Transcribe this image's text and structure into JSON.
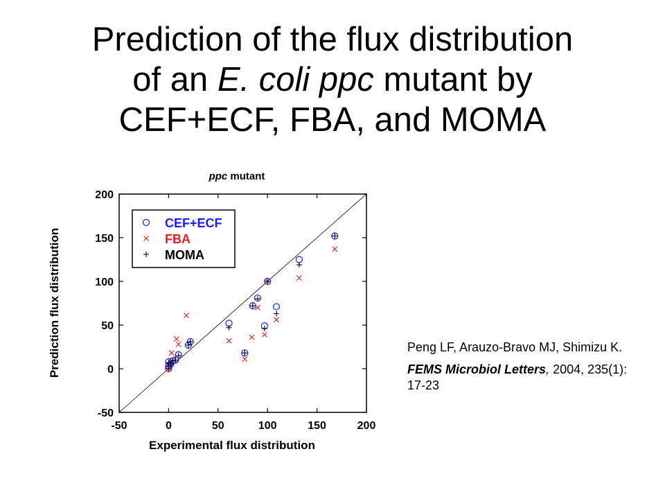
{
  "slide": {
    "title_line1": "Prediction of the flux distribution",
    "title_line2_a": "of an ",
    "title_line2_b": "E. coli ppc",
    "title_line2_c": " mutant by",
    "title_line3": "CEF+ECF, FBA, and MOMA"
  },
  "reference": {
    "authors": "Peng LF, Arauzo-Bravo MJ, Shimizu K.",
    "journal": "FEMS Microbiol Letters",
    "journal_sep": ",",
    "details": "2004, 235(1): 17-23"
  },
  "chart_data": {
    "type": "scatter",
    "title_italic": "ppc",
    "title_rest": " mutant",
    "xlabel": "Experimental flux distribution",
    "ylabel": "Prediction flux distribution",
    "xlim": [
      -50,
      200
    ],
    "ylim": [
      -50,
      200
    ],
    "xticks": [
      -50,
      0,
      50,
      100,
      150,
      200
    ],
    "yticks": [
      -50,
      0,
      50,
      100,
      150,
      200
    ],
    "grid": false,
    "diagonal_line": true,
    "legend_position": "top-left",
    "series": [
      {
        "name": "CEF+ECF",
        "marker": "circle",
        "color": "#1a1aff",
        "points": [
          [
            0,
            0
          ],
          [
            0,
            3
          ],
          [
            0,
            8
          ],
          [
            2,
            5
          ],
          [
            4,
            9
          ],
          [
            7,
            10
          ],
          [
            10,
            16
          ],
          [
            20,
            27
          ],
          [
            22,
            31
          ],
          [
            61,
            52
          ],
          [
            77,
            18
          ],
          [
            85,
            72
          ],
          [
            90,
            81
          ],
          [
            97,
            49
          ],
          [
            100,
            100
          ],
          [
            109,
            71
          ],
          [
            132,
            125
          ],
          [
            168,
            152
          ]
        ]
      },
      {
        "name": "FBA",
        "marker": "x",
        "color": "#e02020",
        "points": [
          [
            0,
            0
          ],
          [
            2,
            8
          ],
          [
            3,
            18
          ],
          [
            8,
            34
          ],
          [
            10,
            28
          ],
          [
            18,
            61
          ],
          [
            61,
            32
          ],
          [
            77,
            11
          ],
          [
            84,
            36
          ],
          [
            90,
            70
          ],
          [
            97,
            39
          ],
          [
            100,
            100
          ],
          [
            109,
            56
          ],
          [
            132,
            104
          ],
          [
            168,
            137
          ]
        ]
      },
      {
        "name": "MOMA",
        "marker": "plus",
        "color": "#000000",
        "points": [
          [
            0,
            0
          ],
          [
            0,
            3
          ],
          [
            0,
            7
          ],
          [
            2,
            5
          ],
          [
            4,
            9
          ],
          [
            7,
            10
          ],
          [
            10,
            15
          ],
          [
            20,
            27
          ],
          [
            22,
            31
          ],
          [
            61,
            47
          ],
          [
            77,
            18
          ],
          [
            85,
            72
          ],
          [
            90,
            80
          ],
          [
            97,
            46
          ],
          [
            100,
            100
          ],
          [
            109,
            63
          ],
          [
            132,
            119
          ],
          [
            168,
            152
          ]
        ]
      }
    ]
  }
}
